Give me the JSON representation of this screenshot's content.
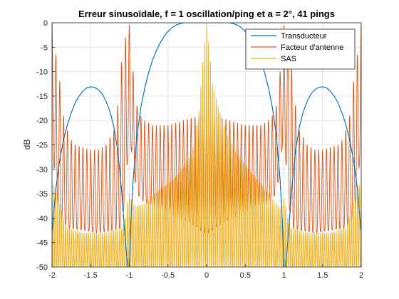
{
  "chart_data": {
    "type": "line",
    "title": "Erreur sinusoïdale, f = 1 oscillation/ping et a = 2°, 41 pings",
    "xlabel": "",
    "ylabel": "dB",
    "xlim": [
      -2,
      2
    ],
    "ylim": [
      -50,
      0
    ],
    "x_ticks": [
      -2,
      -1.5,
      -1,
      -0.5,
      0,
      0.5,
      1,
      1.5,
      2
    ],
    "x_tick_labels": [
      "-2",
      "-1.5",
      "-1",
      "-0.5",
      "0",
      "0.5",
      "1",
      "1.5",
      "2"
    ],
    "y_ticks": [
      0,
      -5,
      -10,
      -15,
      -20,
      -25,
      -30,
      -35,
      -40,
      -45,
      -50
    ],
    "y_tick_labels": [
      "0",
      "-5",
      "-10",
      "-15",
      "-20",
      "-25",
      "-30",
      "-35",
      "-40",
      "-45",
      "-50"
    ],
    "grid": true,
    "legend_position": "top-right",
    "series": [
      {
        "name": "Transducteur",
        "color": "#0072bd",
        "x": [
          -2.0,
          -1.95,
          -1.9,
          -1.85,
          -1.8,
          -1.75,
          -1.7,
          -1.65,
          -1.6,
          -1.55,
          -1.5,
          -1.45,
          -1.4,
          -1.35,
          -1.3,
          -1.25,
          -1.2,
          -1.15,
          -1.1,
          -1.05,
          -1.02,
          -1.0,
          -0.98,
          -0.95,
          -0.9,
          -0.85,
          -0.8,
          -0.75,
          -0.7,
          -0.65,
          -0.6,
          -0.55,
          -0.5,
          -0.45,
          -0.4,
          -0.35,
          -0.3,
          -0.25,
          -0.2,
          -0.15,
          -0.1,
          -0.05,
          0.0,
          0.05,
          0.1,
          0.15,
          0.2,
          0.25,
          0.3,
          0.35,
          0.4,
          0.45,
          0.5,
          0.55,
          0.6,
          0.65,
          0.7,
          0.75,
          0.8,
          0.85,
          0.9,
          0.95,
          0.98,
          1.0,
          1.02,
          1.05,
          1.1,
          1.15,
          1.2,
          1.25,
          1.3,
          1.35,
          1.4,
          1.45,
          1.5,
          1.55,
          1.6,
          1.65,
          1.7,
          1.75,
          1.8,
          1.85,
          1.9,
          1.95,
          2.0
        ],
        "values": [
          -43.2,
          -33.9,
          -28.1,
          -23.9,
          -20.8,
          -18.4,
          -16.4,
          -15.0,
          -14.0,
          -13.3,
          -13.1,
          -13.2,
          -13.7,
          -14.6,
          -16.1,
          -18.2,
          -21.3,
          -26.1,
          -34.2,
          -45.0,
          -50.0,
          -50.0,
          -40.8,
          -32.0,
          -22.9,
          -17.3,
          -13.3,
          -10.2,
          -7.7,
          -5.7,
          -4.1,
          -2.8,
          -1.8,
          -1.0,
          -0.5,
          -0.2,
          0.0,
          0.0,
          0.0,
          0.0,
          0.0,
          0.0,
          0.0,
          0.0,
          0.0,
          0.0,
          0.0,
          0.0,
          0.0,
          -0.2,
          -0.5,
          -1.0,
          -1.8,
          -2.8,
          -4.1,
          -5.7,
          -7.7,
          -10.2,
          -13.3,
          -17.3,
          -22.9,
          -32.0,
          -40.8,
          -50.0,
          -50.0,
          -45.0,
          -34.2,
          -26.1,
          -21.3,
          -18.2,
          -16.1,
          -14.6,
          -13.7,
          -13.2,
          -13.1,
          -13.3,
          -14.0,
          -15.0,
          -16.4,
          -18.4,
          -20.8,
          -23.9,
          -28.1,
          -33.9,
          -43.2
        ]
      },
      {
        "name": "Facteur d'antenne",
        "color": "#d95319",
        "oscillation_period": 0.05,
        "upper_envelope": {
          "x": [
            -2.0,
            -1.97,
            -1.93,
            -1.9,
            -1.85,
            -1.8,
            -1.75,
            -1.7,
            -1.6,
            -1.5,
            -1.4,
            -1.3,
            -1.2,
            -1.15,
            -1.1,
            -1.07,
            -1.05,
            -1.03,
            -1.02,
            -1.0,
            -0.98,
            -0.97,
            -0.95,
            -0.93,
            -0.9,
            -0.85,
            -0.8,
            -0.7,
            -0.6,
            -0.5,
            -0.4,
            -0.3,
            -0.2,
            -0.1,
            -0.05,
            0.0,
            0.05,
            0.1,
            0.2,
            0.3,
            0.4,
            0.5,
            0.6,
            0.7,
            0.8,
            0.85,
            0.9,
            0.93,
            0.95,
            0.97,
            0.98,
            1.0,
            1.02,
            1.03,
            1.05,
            1.07,
            1.1,
            1.15,
            1.2,
            1.3,
            1.4,
            1.5,
            1.6,
            1.7,
            1.75,
            1.8,
            1.85,
            1.9,
            1.93,
            1.97,
            2.0
          ],
          "values": [
            0.0,
            -5.0,
            -8.0,
            -12.0,
            -19.0,
            -22.0,
            -24.0,
            -25.0,
            -25.5,
            -26.0,
            -26.0,
            -25.0,
            -22.0,
            -17.0,
            -8.0,
            -5.0,
            -3.0,
            -1.0,
            0.0,
            -0.5,
            -3.0,
            -7.0,
            -10.0,
            -14.0,
            -17.0,
            -19.0,
            -20.0,
            -21.0,
            -21.0,
            -21.0,
            -20.5,
            -20.0,
            -19.5,
            -19.0,
            -18.5,
            -18.5,
            -18.5,
            -19.0,
            -19.5,
            -20.0,
            -20.5,
            -21.0,
            -21.0,
            -21.0,
            -20.0,
            -19.0,
            -17.0,
            -14.0,
            -10.0,
            -7.0,
            -3.0,
            -0.5,
            0.0,
            -1.0,
            -3.0,
            -5.0,
            -8.0,
            -17.0,
            -22.0,
            -25.0,
            -26.0,
            -26.0,
            -25.5,
            -25.0,
            -24.0,
            -22.0,
            -19.0,
            -12.0,
            -8.0,
            -5.0,
            0.0
          ]
        },
        "lower_envelope": {
          "x": [
            -2.0,
            -1.98,
            -1.95,
            -1.9,
            -1.8,
            -1.6,
            -1.4,
            -1.2,
            -1.1,
            -1.05,
            -1.0,
            -0.95,
            -0.9,
            -0.8,
            -0.6,
            -0.4,
            -0.2,
            -0.1,
            -0.05,
            0.0,
            0.05,
            0.1,
            0.2,
            0.4,
            0.6,
            0.8,
            0.9,
            0.95,
            1.0,
            1.05,
            1.1,
            1.2,
            1.4,
            1.6,
            1.8,
            1.9,
            1.95,
            1.98,
            2.0
          ],
          "values": [
            -22.0,
            -28.0,
            -35.0,
            -40.0,
            -42.0,
            -42.5,
            -43.0,
            -42.5,
            -42.0,
            -35.0,
            -22.0,
            -30.0,
            -35.0,
            -37.0,
            -38.0,
            -39.5,
            -41.0,
            -42.0,
            -43.0,
            -43.0,
            -43.0,
            -42.0,
            -41.0,
            -39.5,
            -38.0,
            -37.0,
            -35.0,
            -30.0,
            -22.0,
            -35.0,
            -42.0,
            -42.5,
            -43.0,
            -42.5,
            -42.0,
            -40.0,
            -35.0,
            -28.0,
            -22.0
          ]
        }
      },
      {
        "name": "SAS",
        "color": "#edb120",
        "oscillation_period": 0.025,
        "upper_envelope": {
          "x": [
            -2.0,
            -1.9,
            -1.85,
            -1.8,
            -1.7,
            -1.6,
            -1.5,
            -1.4,
            -1.3,
            -1.2,
            -1.1,
            -1.05,
            -1.02,
            -1.0,
            -0.98,
            -0.95,
            -0.9,
            -0.8,
            -0.7,
            -0.6,
            -0.5,
            -0.4,
            -0.3,
            -0.2,
            -0.15,
            -0.1,
            -0.07,
            -0.05,
            -0.03,
            -0.02,
            -0.01,
            0.0,
            0.01,
            0.02,
            0.03,
            0.05,
            0.07,
            0.1,
            0.15,
            0.2,
            0.3,
            0.4,
            0.5,
            0.6,
            0.7,
            0.8,
            0.9,
            0.95,
            0.98,
            1.0,
            1.02,
            1.05,
            1.1,
            1.2,
            1.3,
            1.4,
            1.5,
            1.6,
            1.7,
            1.8,
            1.85,
            1.9,
            2.0
          ],
          "values": [
            -32.0,
            -37.0,
            -40.0,
            -42.0,
            -42.5,
            -43.0,
            -43.0,
            -43.0,
            -43.0,
            -42.5,
            -42.0,
            -40.0,
            -36.0,
            -35.0,
            -36.0,
            -37.0,
            -37.5,
            -37.0,
            -35.5,
            -34.0,
            -33.0,
            -31.5,
            -29.5,
            -27.0,
            -24.0,
            -18.0,
            -12.0,
            -8.0,
            -5.0,
            -3.0,
            -1.0,
            0.0,
            -1.0,
            -3.0,
            -5.0,
            -8.0,
            -12.0,
            -14.0,
            -17.0,
            -20.0,
            -24.0,
            -27.0,
            -29.0,
            -31.0,
            -33.0,
            -35.0,
            -37.0,
            -38.0,
            -37.0,
            -36.0,
            -37.0,
            -40.0,
            -42.0,
            -42.5,
            -43.0,
            -43.0,
            -43.0,
            -43.0,
            -42.5,
            -42.0,
            -40.0,
            -37.0,
            -32.0
          ]
        },
        "lower_envelope_value": -50.0
      }
    ]
  }
}
